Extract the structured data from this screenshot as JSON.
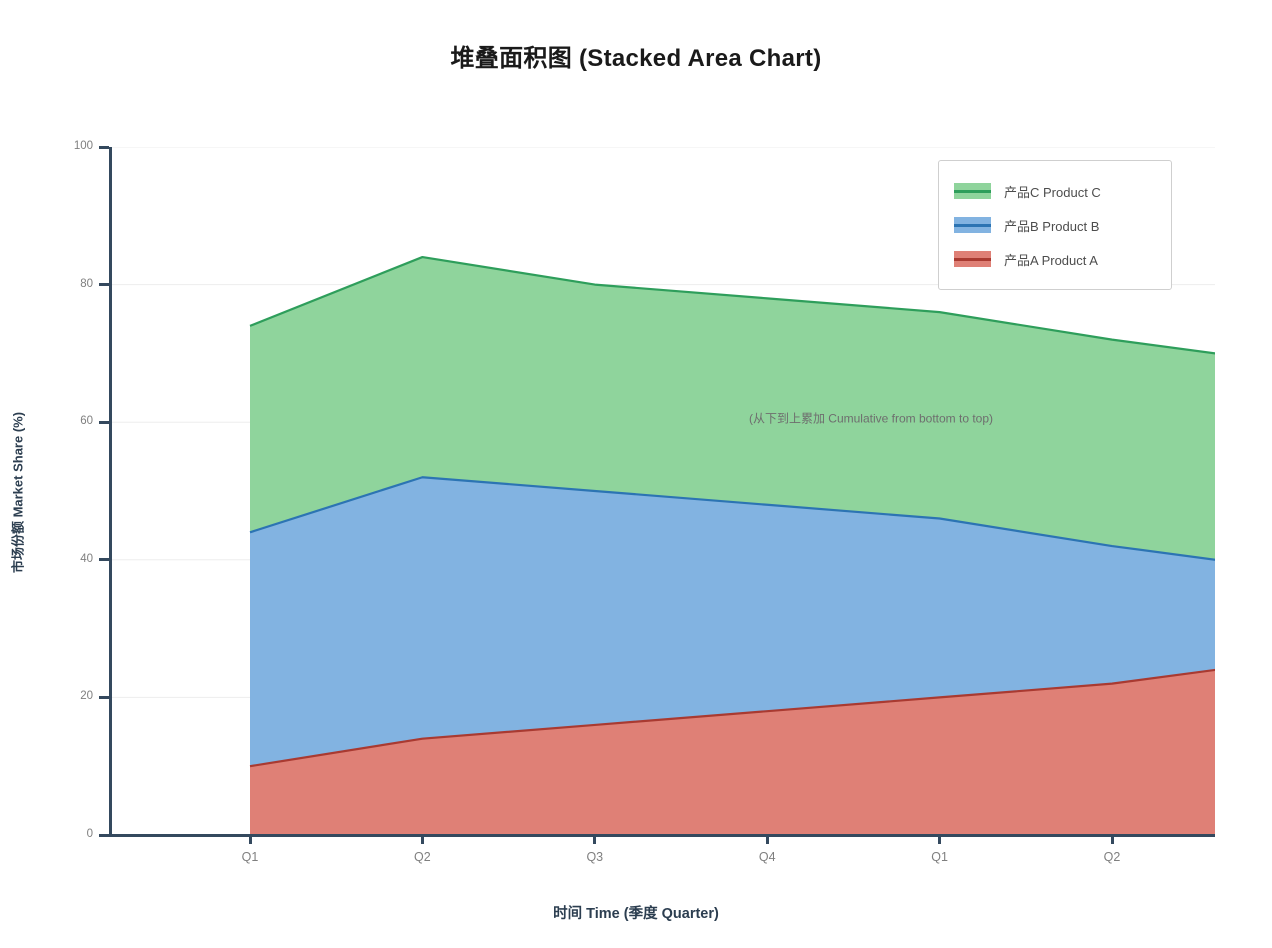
{
  "title": "堆叠面积图 (Stacked Area Chart)",
  "axes": {
    "y_label": "市场份额 Market Share (%)",
    "x_label": "时间 Time (季度 Quarter)",
    "y_ticks": [
      0,
      20,
      40,
      60,
      80,
      100
    ],
    "x_ticks": [
      "Q1",
      "Q2",
      "Q3",
      "Q4",
      "Q1",
      "Q2"
    ]
  },
  "annotation": "(从下到上累加 Cumulative from bottom to top)",
  "legend": {
    "position": "upper right",
    "items": [
      {
        "label": "产品C Product C",
        "fill": "#8fd49c",
        "line": "#2e9e5b"
      },
      {
        "label": "产品B Product B",
        "fill": "#82b3e1",
        "line": "#2c74b3"
      },
      {
        "label": "产品A Product A",
        "fill": "#df8076",
        "line": "#a93a31"
      }
    ]
  },
  "chart_data": {
    "type": "area",
    "stacked": true,
    "title": "堆叠面积图 (Stacked Area Chart)",
    "xlabel": "时间 Time (季度 Quarter)",
    "ylabel": "市场份额 Market Share (%)",
    "categories": [
      "Q1",
      "Q2",
      "Q3",
      "Q4",
      "Q1",
      "Q2",
      "(clipped)"
    ],
    "x_fractions": [
      0,
      1,
      2,
      3,
      4,
      5,
      5.6
    ],
    "series": [
      {
        "name": "产品A Product A",
        "values": [
          10,
          14,
          16,
          18,
          20,
          22,
          24
        ],
        "fill": "#df8076",
        "line": "#a93a31"
      },
      {
        "name": "产品B Product B",
        "values": [
          34,
          38,
          34,
          30,
          26,
          20,
          16
        ],
        "fill": "#82b3e1",
        "line": "#2c74b3"
      },
      {
        "name": "产品C Product C",
        "values": [
          30,
          32,
          30,
          30,
          30,
          30,
          30
        ],
        "fill": "#8fd49c",
        "line": "#2e9e5b"
      }
    ],
    "cumulative_tops": {
      "产品A": [
        10,
        14,
        16,
        18,
        20,
        22,
        24
      ],
      "产品B": [
        44,
        52,
        50,
        48,
        46,
        42,
        40
      ],
      "产品C": [
        74,
        84,
        80,
        78,
        76,
        72,
        70
      ]
    },
    "ylim": [
      0,
      100
    ],
    "grid": "horizontal",
    "legend_position": "upper right"
  },
  "colors": {
    "spine": "#34495e",
    "gridline": "#ededed",
    "tick_label": "#7f7f7f",
    "axis_label": "#2c3e50",
    "title": "#1a1a1a",
    "annotation_text": "#6e6e6e"
  }
}
